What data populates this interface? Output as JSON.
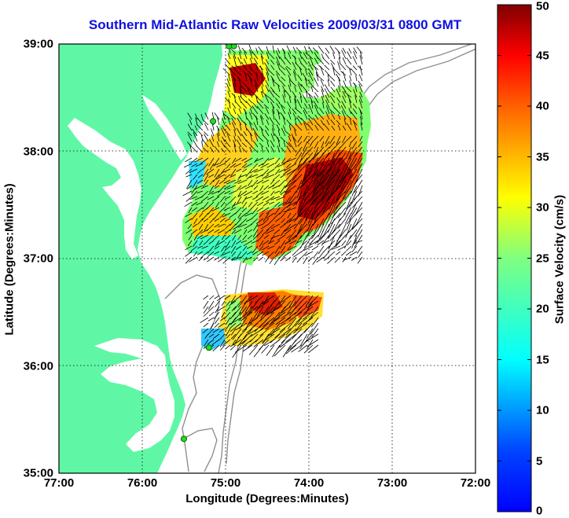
{
  "title": "Southern Mid-Atlantic Raw Velocities 2009/03/31 0800 GMT",
  "axes": {
    "xlabel": "Longitude (Degrees:Minutes)",
    "ylabel": "Latitude (Degrees:Minutes)",
    "xticks": [
      "77:00",
      "76:00",
      "75:00",
      "74:00",
      "73:00",
      "72:00"
    ],
    "yticks": [
      "39:00",
      "38:00",
      "37:00",
      "36:00",
      "35:00"
    ],
    "xlim": [
      -77,
      -72
    ],
    "ylim": [
      35,
      39
    ],
    "grid": true
  },
  "colorbar": {
    "label": "Surface Velocity (cm/s)",
    "ticks": [
      "0",
      "5",
      "10",
      "15",
      "20",
      "25",
      "30",
      "35",
      "40",
      "45",
      "50"
    ],
    "range": [
      0,
      50
    ],
    "colormap": "jet"
  },
  "colors": {
    "land": "#5ff7a6",
    "title": "#1010e0",
    "bathymetry": "#909090",
    "station": "#22dd22"
  },
  "stations": [
    {
      "lon": -74.9,
      "lat": 38.98
    },
    {
      "lon": -74.96,
      "lat": 38.98
    },
    {
      "lon": -75.15,
      "lat": 38.28
    },
    {
      "lon": -75.2,
      "lat": 36.17
    },
    {
      "lon": -75.5,
      "lat": 35.32
    }
  ],
  "velocity_regions": [
    {
      "name": "northern",
      "approx_lon": [
        -75.0,
        -73.3
      ],
      "approx_lat": [
        37.0,
        38.95
      ],
      "speed_range_cms": [
        10,
        50
      ]
    },
    {
      "name": "southern",
      "approx_lon": [
        -75.0,
        -73.8
      ],
      "approx_lat": [
        36.1,
        36.7
      ],
      "speed_range_cms": [
        10,
        45
      ]
    }
  ]
}
